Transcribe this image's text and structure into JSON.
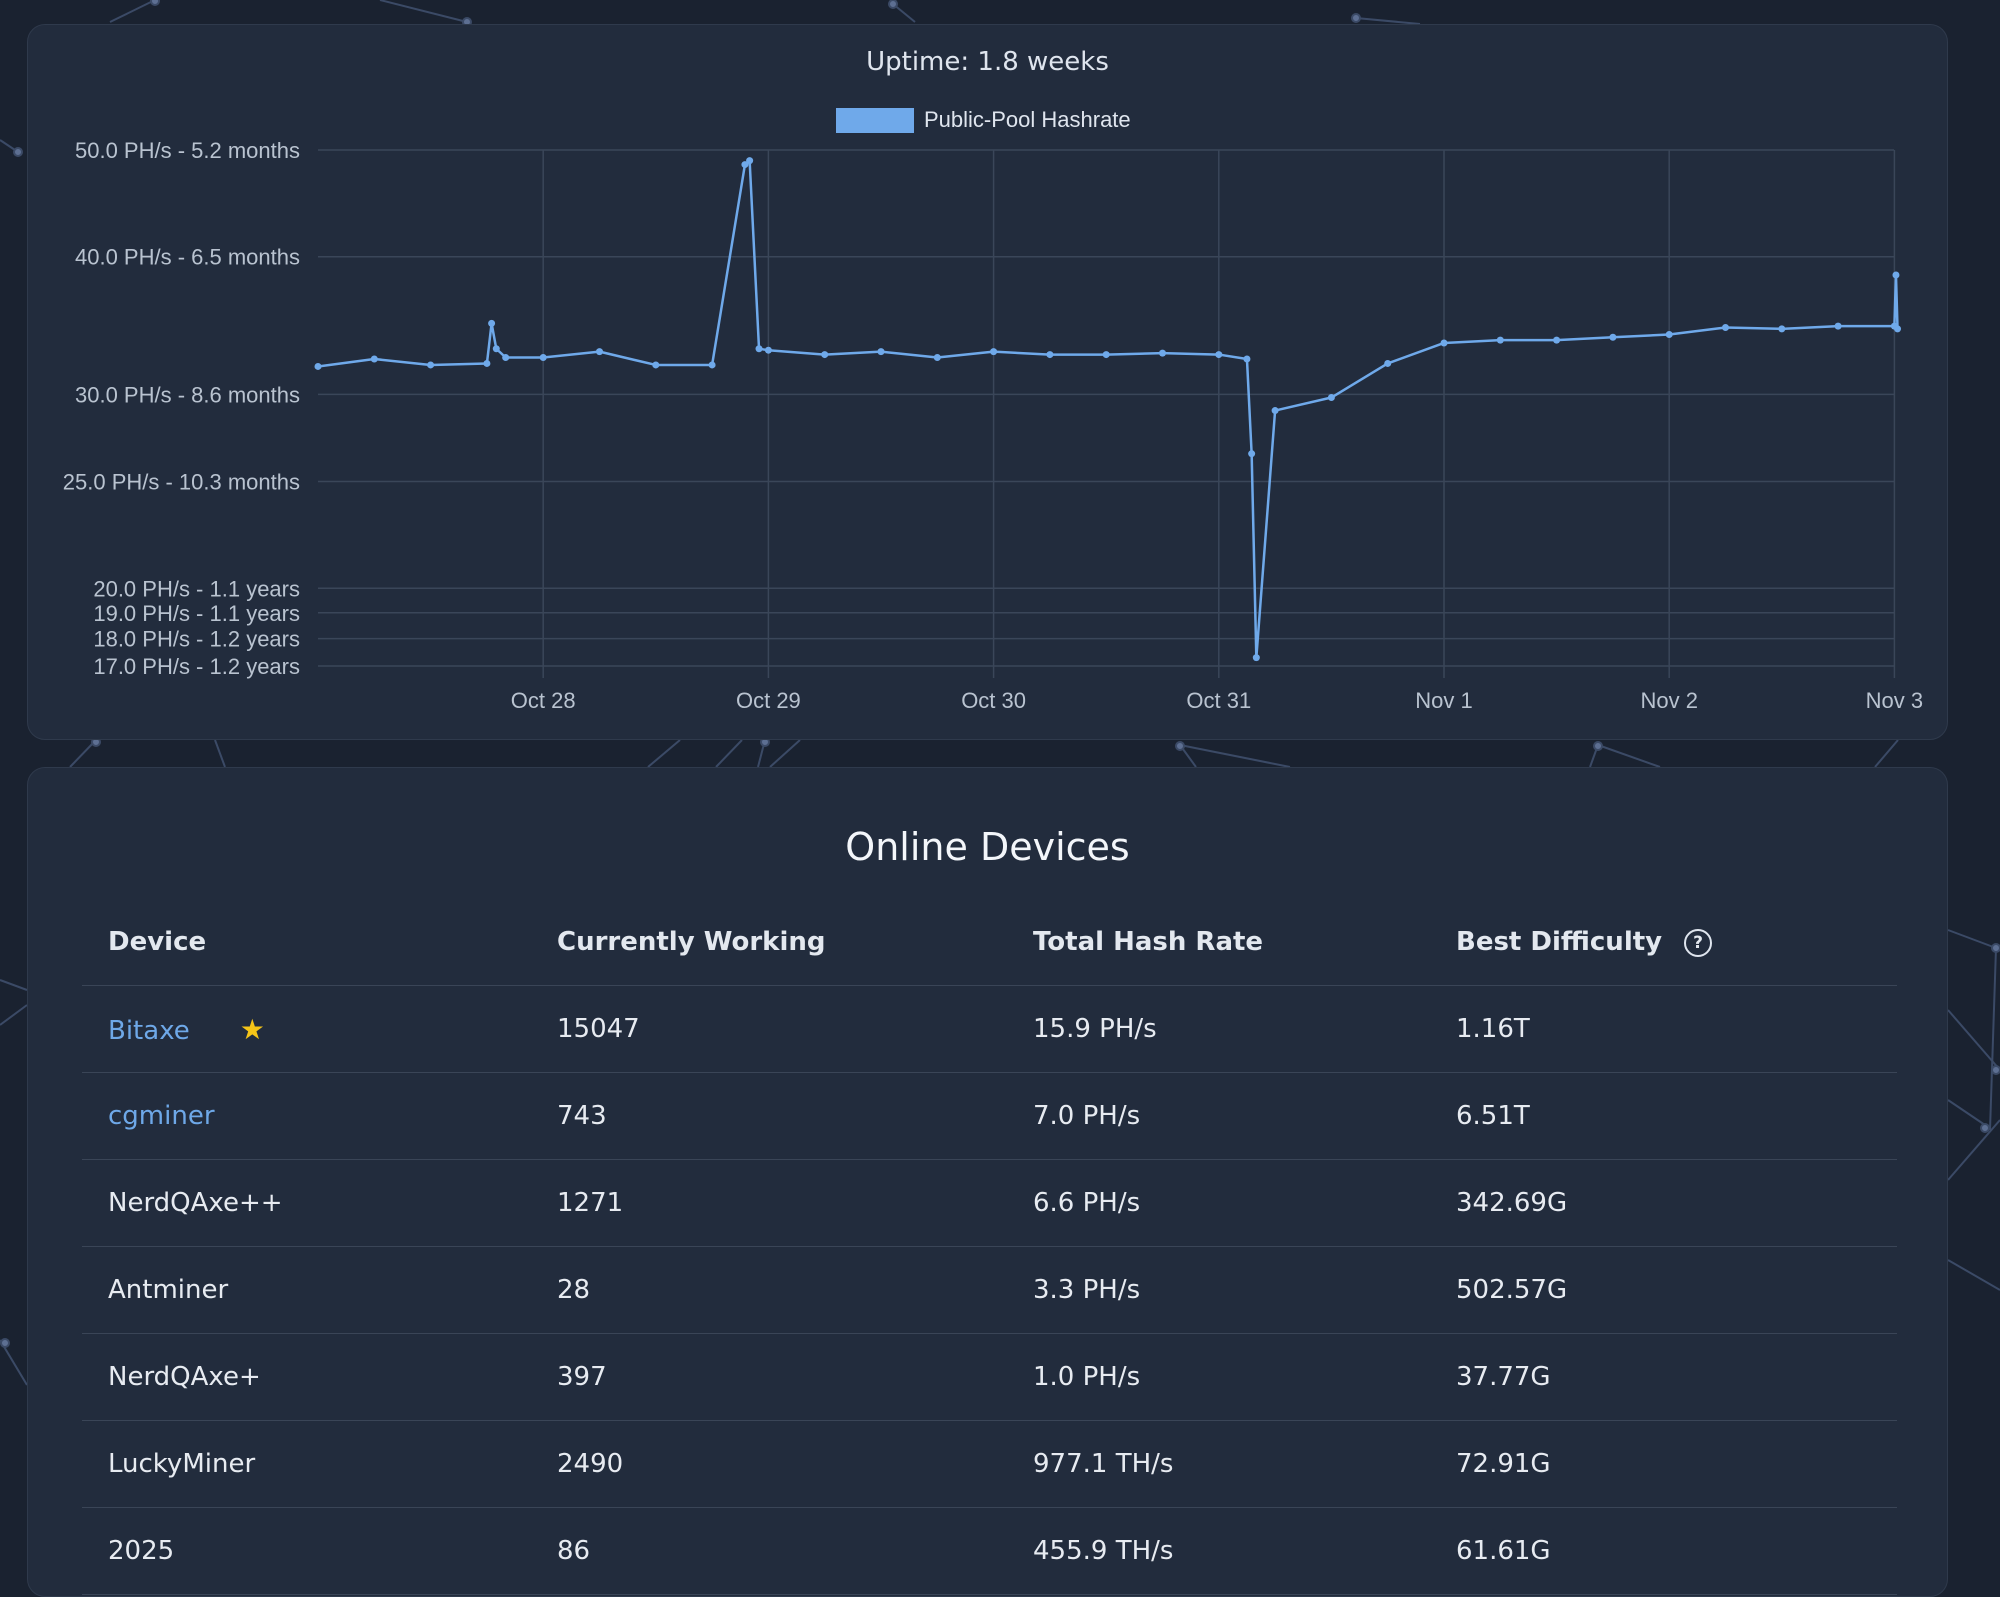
{
  "chart": {
    "title": "Uptime: 1.8 weeks",
    "legend_label": "Public-Pool Hashrate",
    "colors": {
      "series": "#6fa9ea",
      "grid": "#3a4659",
      "axis_text": "#b9c3d0"
    }
  },
  "chart_data": {
    "type": "line",
    "title": "Uptime: 1.8 weeks",
    "xlabel": "",
    "ylabel": "",
    "y_scale": "log",
    "ylim": [
      17,
      50
    ],
    "grid": true,
    "legend": "top-center",
    "series": [
      {
        "name": "Public-Pool Hashrate",
        "color": "#6fa9ea",
        "x": [
          "Oct 27 00:00",
          "Oct 27 06:00",
          "Oct 27 12:00",
          "Oct 27 18:00",
          "Oct 27 18:30",
          "Oct 27 19:00",
          "Oct 27 20:00",
          "Oct 28 00:00",
          "Oct 28 06:00",
          "Oct 28 12:00",
          "Oct 28 18:00",
          "Oct 28 21:30",
          "Oct 28 22:00",
          "Oct 28 23:00",
          "Oct 29 00:00",
          "Oct 29 06:00",
          "Oct 29 12:00",
          "Oct 29 18:00",
          "Oct 30 00:00",
          "Oct 30 06:00",
          "Oct 30 12:00",
          "Oct 30 18:00",
          "Oct 31 00:00",
          "Oct 31 03:00",
          "Oct 31 03:30",
          "Oct 31 04:00",
          "Oct 31 06:00",
          "Oct 31 12:00",
          "Oct 31 18:00",
          "Nov 1 00:00",
          "Nov 1 06:00",
          "Nov 1 12:00",
          "Nov 1 18:00",
          "Nov 2 00:00",
          "Nov 2 06:00",
          "Nov 2 12:00",
          "Nov 2 18:00",
          "Nov 3 00:00",
          "Nov 3 00:10",
          "Nov 3 00:20"
        ],
        "values": [
          31.8,
          32.3,
          31.9,
          32.0,
          34.8,
          33.0,
          32.4,
          32.4,
          32.8,
          31.9,
          31.9,
          48.5,
          48.9,
          33.0,
          32.9,
          32.6,
          32.8,
          32.4,
          32.8,
          32.6,
          32.6,
          32.7,
          32.6,
          32.3,
          26.5,
          17.3,
          29.0,
          29.8,
          32.0,
          33.4,
          33.6,
          33.6,
          33.8,
          34.0,
          34.5,
          34.4,
          34.6,
          34.6,
          38.5,
          34.4
        ]
      }
    ],
    "y_ticks": [
      "50.0 PH/s - 5.2 months",
      "40.0 PH/s - 6.5 months",
      "30.0 PH/s - 8.6 months",
      "25.0 PH/s - 10.3 months",
      "20.0 PH/s - 1.1 years",
      "19.0 PH/s - 1.1 years",
      "18.0 PH/s - 1.2 years",
      "17.0 PH/s - 1.2 years"
    ],
    "y_tick_values": [
      50,
      40,
      30,
      25,
      20,
      19,
      18,
      17
    ],
    "x_ticks": [
      "Oct 28",
      "Oct 29",
      "Oct 30",
      "Oct 31",
      "Nov 1",
      "Nov 2",
      "Nov 3"
    ],
    "x_tick_dates": [
      "Oct 28 00:00",
      "Oct 29 00:00",
      "Oct 30 00:00",
      "Oct 31 00:00",
      "Nov 1 00:00",
      "Nov 2 00:00",
      "Nov 3 00:00"
    ]
  },
  "devices": {
    "title": "Online Devices",
    "columns": [
      "Device",
      "Currently Working",
      "Total Hash Rate",
      "Best Difficulty"
    ],
    "help_icon": "?",
    "star_icon": "★",
    "rows": [
      {
        "device": "Bitaxe",
        "working": "15047",
        "hashrate": "15.9 PH/s",
        "best": "1.16T",
        "link": true,
        "star": true
      },
      {
        "device": "cgminer",
        "working": "743",
        "hashrate": "7.0 PH/s",
        "best": "6.51T",
        "link": true,
        "star": false
      },
      {
        "device": "NerdQAxe++",
        "working": "1271",
        "hashrate": "6.6 PH/s",
        "best": "342.69G",
        "link": false,
        "star": false
      },
      {
        "device": "Antminer",
        "working": "28",
        "hashrate": "3.3 PH/s",
        "best": "502.57G",
        "link": false,
        "star": false
      },
      {
        "device": "NerdQAxe+",
        "working": "397",
        "hashrate": "1.0 PH/s",
        "best": "37.77G",
        "link": false,
        "star": false
      },
      {
        "device": "LuckyMiner",
        "working": "2490",
        "hashrate": "977.1 TH/s",
        "best": "72.91G",
        "link": false,
        "star": false
      },
      {
        "device": "2025",
        "working": "86",
        "hashrate": "455.9 TH/s",
        "best": "61.61G",
        "link": false,
        "star": false
      }
    ]
  }
}
